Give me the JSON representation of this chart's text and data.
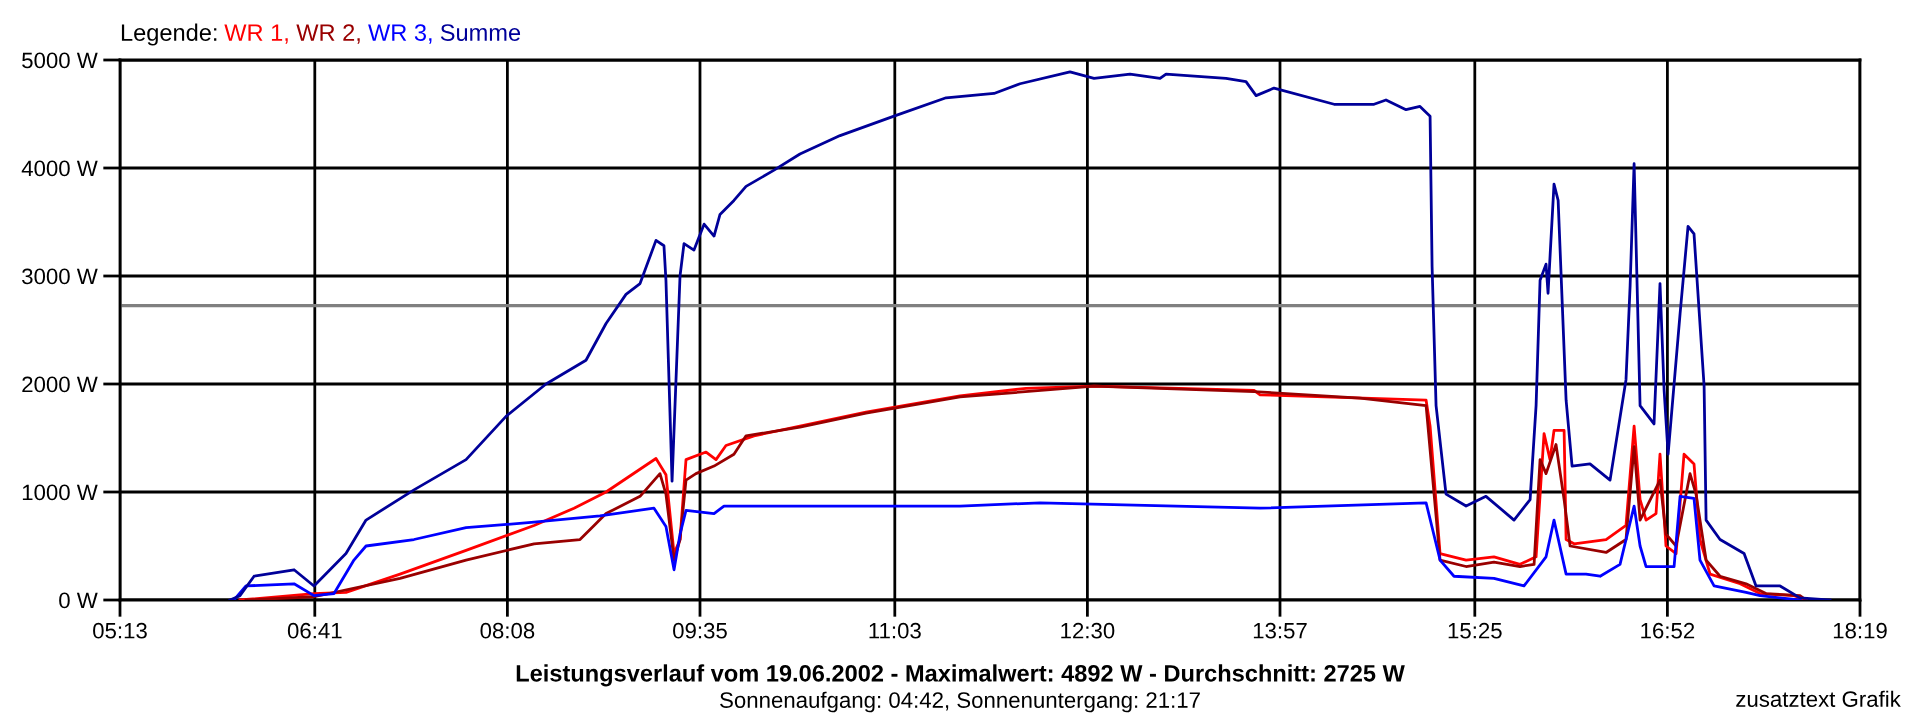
{
  "chart_data": {
    "type": "line",
    "title": "Leistungsverlauf vom 19.06.2002 - Maximalwert: 4892 W - Durchschnitt: 2725 W",
    "subtitle": "Sonnenaufgang: 04:42, Sonnenuntergang: 21:17",
    "legend_title": "Legende:",
    "legend": "top left",
    "grid": true,
    "line_style": "solid",
    "marker": "none",
    "xlim": [
      5.2167,
      18.3167
    ],
    "ylim": [
      0,
      5000
    ],
    "xticks": [
      {
        "value": 5.2167,
        "label": "05:13"
      },
      {
        "value": 6.6833,
        "label": "06:41"
      },
      {
        "value": 8.1333,
        "label": "08:08"
      },
      {
        "value": 9.5833,
        "label": "09:35"
      },
      {
        "value": 11.05,
        "label": "11:03"
      },
      {
        "value": 12.5,
        "label": "12:30"
      },
      {
        "value": 13.95,
        "label": "13:57"
      },
      {
        "value": 15.4167,
        "label": "15:25"
      },
      {
        "value": 16.8667,
        "label": "16:52"
      },
      {
        "value": 18.3167,
        "label": "18:19"
      }
    ],
    "yticks": [
      {
        "value": 0,
        "label": "0 W"
      },
      {
        "value": 1000,
        "label": "1000 W"
      },
      {
        "value": 2000,
        "label": "2000 W"
      },
      {
        "value": 3000,
        "label": "3000 W"
      },
      {
        "value": 4000,
        "label": "4000 W"
      },
      {
        "value": 5000,
        "label": "5000 W"
      }
    ],
    "ref_lines": [
      {
        "axis": "y",
        "value": 2725,
        "color": "#808080"
      }
    ],
    "annotations": [
      "zusatztext Grafik"
    ],
    "series": [
      {
        "name": "WR 1,",
        "color": "#ff0000",
        "x": [
          6.12,
          6.677,
          6.918,
          7.325,
          7.822,
          8.334,
          8.635,
          8.876,
          9.252,
          9.327,
          9.388,
          9.433,
          9.478,
          9.629,
          9.704,
          9.779,
          9.99,
          10.336,
          10.833,
          11.541,
          12.038,
          12.55,
          13.755,
          13.8,
          15.05,
          15.08,
          15.155,
          15.351,
          15.561,
          15.757,
          15.878,
          15.938,
          15.983,
          16.013,
          16.089,
          16.104,
          16.164,
          16.405,
          16.555,
          16.616,
          16.661,
          16.706,
          16.781,
          16.811,
          16.856,
          16.932,
          16.992,
          17.067,
          17.112,
          17.188,
          17.414,
          17.564,
          17.82,
          17.911
        ],
        "values": [
          0,
          60,
          70,
          240,
          460,
          690,
          850,
          1000,
          1310,
          1160,
          430,
          560,
          1300,
          1370,
          1300,
          1430,
          1520,
          1610,
          1740,
          1890,
          1960,
          1980,
          1940,
          1900,
          1850,
          1610,
          430,
          370,
          400,
          330,
          400,
          1540,
          1300,
          1570,
          1570,
          560,
          520,
          560,
          690,
          1610,
          930,
          740,
          800,
          1350,
          500,
          430,
          1350,
          1260,
          560,
          240,
          150,
          60,
          40,
          0
        ]
      },
      {
        "name": "WR 2,",
        "color": "#990000",
        "x": [
          6.165,
          6.677,
          7.325,
          7.822,
          8.334,
          8.68,
          8.786,
          8.876,
          9.132,
          9.282,
          9.327,
          9.388,
          9.433,
          9.478,
          9.553,
          9.689,
          9.839,
          9.93,
          10.336,
          10.833,
          11.541,
          12.55,
          13.755,
          14.553,
          15.05,
          15.155,
          15.351,
          15.561,
          15.757,
          15.863,
          15.908,
          15.953,
          16.028,
          16.089,
          16.134,
          16.405,
          16.555,
          16.616,
          16.661,
          16.811,
          16.856,
          16.932,
          17.037,
          17.082,
          17.158,
          17.263,
          17.459,
          17.609,
          17.865,
          17.911
        ],
        "values": [
          0,
          30,
          200,
          370,
          520,
          560,
          690,
          800,
          960,
          1170,
          980,
          370,
          560,
          1110,
          1170,
          1240,
          1350,
          1520,
          1600,
          1730,
          1880,
          1980,
          1930,
          1870,
          1800,
          370,
          310,
          350,
          310,
          330,
          1300,
          1170,
          1440,
          930,
          500,
          440,
          560,
          1420,
          740,
          1110,
          610,
          500,
          1170,
          980,
          370,
          220,
          150,
          60,
          40,
          0
        ]
      },
      {
        "name": "WR 3,",
        "color": "#0000ff",
        "x": [
          6.075,
          6.165,
          6.527,
          6.677,
          6.828,
          6.978,
          7.069,
          7.43,
          7.822,
          8.334,
          8.83,
          9.237,
          9.327,
          9.388,
          9.433,
          9.478,
          9.689,
          9.764,
          11.541,
          12.144,
          13.8,
          15.05,
          15.155,
          15.26,
          15.561,
          15.787,
          15.953,
          16.013,
          16.104,
          16.254,
          16.36,
          16.51,
          16.616,
          16.661,
          16.706,
          16.917,
          16.962,
          17.067,
          17.112,
          17.218,
          17.459,
          17.564,
          17.865
        ],
        "values": [
          0,
          130,
          150,
          40,
          60,
          370,
          500,
          560,
          670,
          720,
          780,
          850,
          680,
          280,
          610,
          830,
          800,
          870,
          870,
          900,
          850,
          900,
          370,
          220,
          200,
          130,
          400,
          740,
          240,
          240,
          220,
          330,
          870,
          500,
          310,
          310,
          960,
          940,
          370,
          130,
          70,
          40,
          0
        ]
      },
      {
        "name": "Summe",
        "color": "#000099",
        "x": [
          6.045,
          6.12,
          6.226,
          6.527,
          6.677,
          6.918,
          7.069,
          7.43,
          7.822,
          8.123,
          8.424,
          8.725,
          8.876,
          9.026,
          9.132,
          9.252,
          9.312,
          9.327,
          9.373,
          9.433,
          9.463,
          9.538,
          9.614,
          9.689,
          9.734,
          9.839,
          9.93,
          10.141,
          10.336,
          10.638,
          11.044,
          11.436,
          11.797,
          11.993,
          12.369,
          12.55,
          12.821,
          13.047,
          13.092,
          13.544,
          13.694,
          13.77,
          13.905,
          14.357,
          14.658,
          14.748,
          14.899,
          15.004,
          15.08,
          15.095,
          15.125,
          15.2,
          15.351,
          15.501,
          15.712,
          15.833,
          15.878,
          15.908,
          15.953,
          15.968,
          16.013,
          16.044,
          16.104,
          16.149,
          16.284,
          16.435,
          16.555,
          16.586,
          16.616,
          16.661,
          16.766,
          16.811,
          16.842,
          16.872,
          16.962,
          17.022,
          17.067,
          17.143,
          17.158,
          17.263,
          17.444,
          17.534,
          17.715,
          17.865,
          18.091
        ],
        "values": [
          0,
          40,
          220,
          280,
          130,
          430,
          740,
          1020,
          1300,
          1700,
          2000,
          2220,
          2560,
          2830,
          2930,
          3330,
          3280,
          2960,
          1100,
          3000,
          3300,
          3240,
          3480,
          3370,
          3570,
          3700,
          3830,
          3980,
          4130,
          4300,
          4480,
          4650,
          4690,
          4780,
          4890,
          4830,
          4870,
          4830,
          4870,
          4830,
          4800,
          4670,
          4740,
          4590,
          4590,
          4630,
          4540,
          4570,
          4480,
          3090,
          1800,
          980,
          870,
          960,
          740,
          930,
          1800,
          2960,
          3110,
          2840,
          3850,
          3700,
          1850,
          1240,
          1260,
          1110,
          2040,
          2910,
          4040,
          1800,
          1630,
          2930,
          1940,
          1350,
          2650,
          3460,
          3390,
          1980,
          740,
          560,
          430,
          130,
          130,
          20,
          0
        ]
      }
    ]
  }
}
